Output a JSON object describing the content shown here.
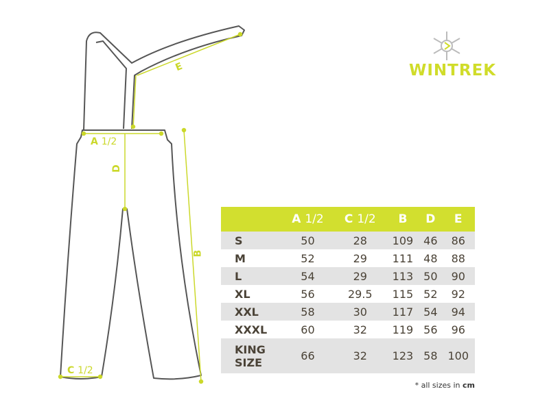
{
  "brand": {
    "logo_text": "WINTREK",
    "logo_icon": "snowflake-icon"
  },
  "colors": {
    "accent": "#d2df2f",
    "row_grey": "#e3e3e3",
    "text": "#4a4236",
    "outline": "#555555"
  },
  "diagram_labels": {
    "a": "A",
    "a_half": "1/2",
    "b": "B",
    "c": "C",
    "c_half": "1/2",
    "d": "D",
    "e": "E"
  },
  "table": {
    "headers": [
      {
        "letter": "A",
        "suffix": "1/2"
      },
      {
        "letter": "C",
        "suffix": "1/2"
      },
      {
        "letter": "B",
        "suffix": ""
      },
      {
        "letter": "D",
        "suffix": ""
      },
      {
        "letter": "E",
        "suffix": ""
      }
    ],
    "rows": [
      {
        "size": "S",
        "values": [
          "50",
          "28",
          "109",
          "46",
          "86"
        ]
      },
      {
        "size": "M",
        "values": [
          "52",
          "29",
          "111",
          "48",
          "88"
        ]
      },
      {
        "size": "L",
        "values": [
          "54",
          "29",
          "113",
          "50",
          "90"
        ]
      },
      {
        "size": "XL",
        "values": [
          "56",
          "29.5",
          "115",
          "52",
          "92"
        ]
      },
      {
        "size": "XXL",
        "values": [
          "58",
          "30",
          "117",
          "54",
          "94"
        ]
      },
      {
        "size": "XXXL",
        "values": [
          "60",
          "32",
          "119",
          "56",
          "96"
        ]
      },
      {
        "size_line1": "KING",
        "size_line2": "SIZE",
        "values": [
          "66",
          "32",
          "123",
          "58",
          "100"
        ]
      }
    ]
  },
  "footnote": {
    "text": "* all sizes in ",
    "unit": "cm"
  }
}
